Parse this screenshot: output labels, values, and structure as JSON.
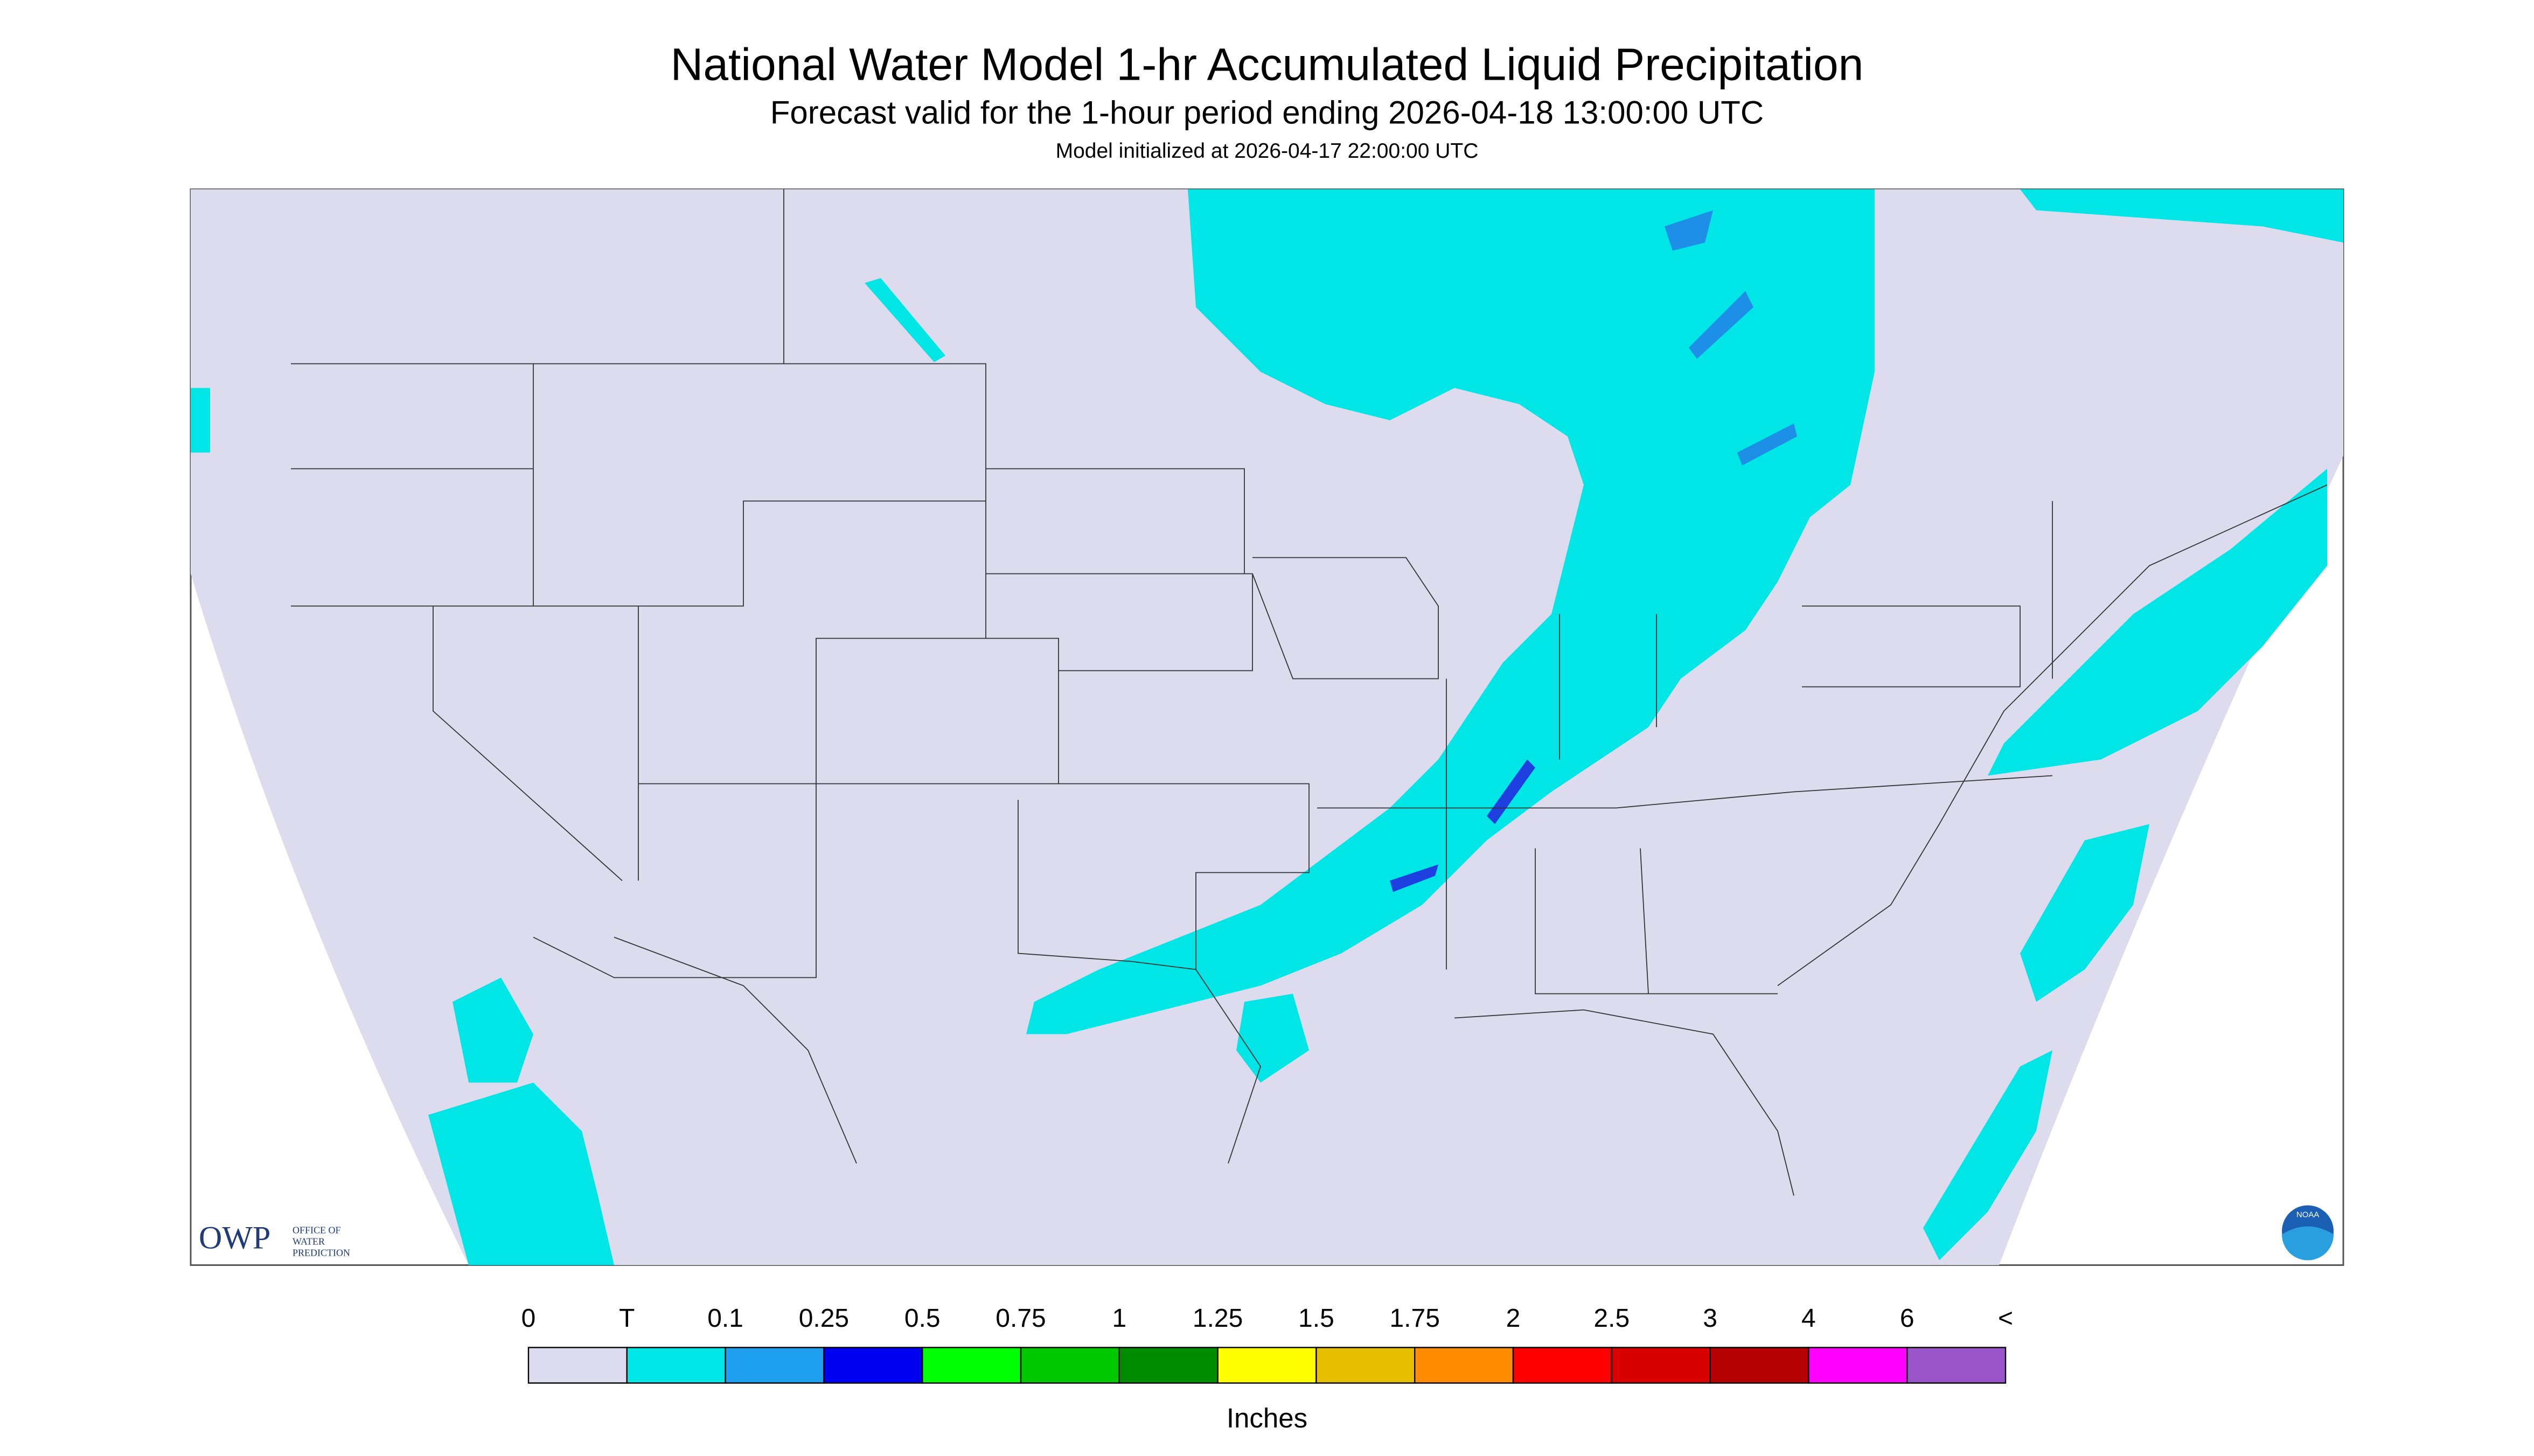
{
  "header": {
    "title": "National Water Model 1-hr Accumulated Liquid Precipitation",
    "subtitle": "Forecast valid for the 1-hour period ending 2026-04-18 13:00:00 UTC",
    "initialized": "Model initialized at 2026-04-17 22:00:00 UTC"
  },
  "legend": {
    "labels": [
      "0",
      "T",
      "0.1",
      "0.25",
      "0.5",
      "0.75",
      "1",
      "1.25",
      "1.5",
      "1.75",
      "2",
      "2.5",
      "3",
      "4",
      "6",
      "<"
    ],
    "colors": [
      "#dcdcee",
      "#00e5e5",
      "#1e9ff0",
      "#0000f0",
      "#00ff00",
      "#00c800",
      "#008c00",
      "#ffff00",
      "#e6c000",
      "#ff8c00",
      "#ff0000",
      "#d80000",
      "#b40000",
      "#ff00ff",
      "#9955c8"
    ],
    "unit": "Inches"
  },
  "logo": {
    "owp": "OWP",
    "line1": "OFFICE OF",
    "line2": "WATER",
    "line3": "PREDICTION",
    "noaa": "NOAA"
  }
}
